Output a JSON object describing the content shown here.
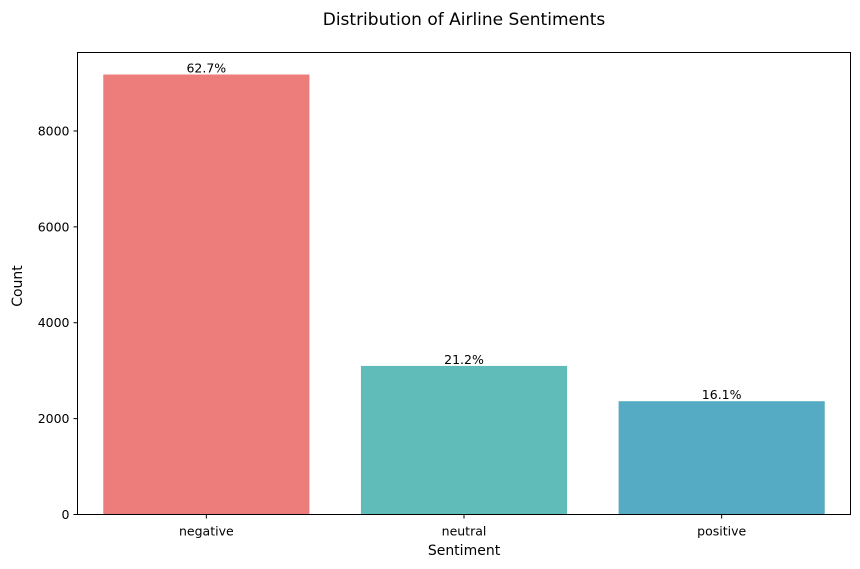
{
  "chart_data": {
    "type": "bar",
    "title": "Distribution of Airline Sentiments",
    "xlabel": "Sentiment",
    "ylabel": "Count",
    "categories": [
      "negative",
      "neutral",
      "positive"
    ],
    "values": [
      9178,
      3099,
      2363
    ],
    "data_labels": [
      "62.7%",
      "21.2%",
      "16.1%"
    ],
    "colors": [
      "#ec7d7a",
      "#5fbcb8",
      "#55abc3"
    ],
    "yticks": [
      0,
      2000,
      4000,
      6000,
      8000
    ],
    "ylim": [
      0,
      9637
    ],
    "grid": false,
    "legend": "none"
  }
}
